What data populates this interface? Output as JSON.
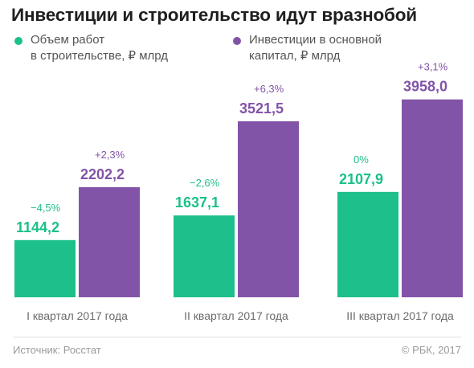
{
  "title": "Инвестиции и строительство идут вразнобой",
  "legend": [
    {
      "line1": "Объем работ",
      "line2": "в строительстве, ₽ млрд",
      "color": "#1dbf8a"
    },
    {
      "line1": "Инвестиции в основной",
      "line2": "капитал, ₽ млрд",
      "color": "#8254a8"
    }
  ],
  "chart_data": {
    "type": "bar",
    "categories": [
      "I квартал 2017 года",
      "II квартал 2017 года",
      "III квартал 2017 года"
    ],
    "series": [
      {
        "name": "Объем работ в строительстве, ₽ млрд",
        "values": [
          1144.2,
          1637.1,
          2107.9
        ],
        "value_labels": [
          "1144,2",
          "1637,1",
          "2107,9"
        ],
        "change_labels": [
          "−4,5%",
          "−2,6%",
          "0%"
        ],
        "color": "#1dbf8a"
      },
      {
        "name": "Инвестиции в основной капитал, ₽ млрд",
        "values": [
          2202.2,
          3521.5,
          3958.0
        ],
        "value_labels": [
          "2202,2",
          "3521,5",
          "3958,0"
        ],
        "change_labels": [
          "+2,3%",
          "+6,3%",
          "+3,1%"
        ],
        "color": "#8254a8"
      }
    ],
    "ylim": [
      0,
      4500
    ],
    "grid": false,
    "legend_position": "top"
  },
  "footer": {
    "source": "Источник: Росстат",
    "copyright": "© РБК, 2017"
  }
}
